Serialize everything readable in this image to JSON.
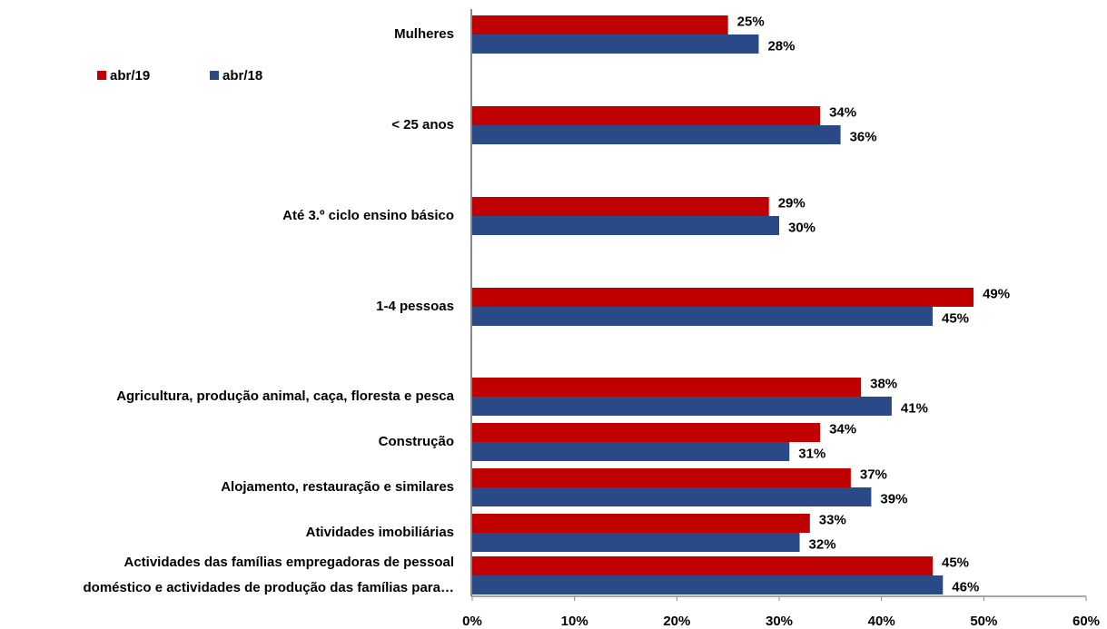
{
  "chart_data": {
    "type": "bar",
    "orientation": "horizontal",
    "categories": [
      "Mulheres",
      "< 25 anos",
      "Até 3.º ciclo ensino básico",
      "1-4 pessoas",
      "Agricultura, produção animal, caça, floresta e pesca",
      "Construção",
      "Alojamento, restauração e similares",
      "Atividades imobiliárias",
      "Actividades das famílias empregadoras de pessoal\ndoméstico e actividades de produção das  famílias para…"
    ],
    "series": [
      {
        "name": "abr/19",
        "color": "#c00000",
        "values": [
          25,
          34,
          29,
          49,
          38,
          34,
          37,
          33,
          45
        ],
        "value_labels": [
          "25%",
          "34%",
          "29%",
          "49%",
          "38%",
          "34%",
          "37%",
          "33%",
          "45%"
        ]
      },
      {
        "name": "abr/18",
        "color": "#2a4a87",
        "values": [
          28,
          36,
          30,
          45,
          41,
          31,
          39,
          32,
          46
        ],
        "value_labels": [
          "28%",
          "36%",
          "30%",
          "45%",
          "41%",
          "31%",
          "39%",
          "32%",
          "46%"
        ]
      }
    ],
    "xlim": [
      0,
      60
    ],
    "xticks": [
      {
        "value": 0,
        "label": "0%"
      },
      {
        "value": 10,
        "label": "10%"
      },
      {
        "value": 20,
        "label": "20%"
      },
      {
        "value": 30,
        "label": "30%"
      },
      {
        "value": 40,
        "label": "40%"
      },
      {
        "value": 50,
        "label": "50%"
      },
      {
        "value": 60,
        "label": "60%"
      }
    ],
    "legend": "upper left",
    "grid": false
  }
}
